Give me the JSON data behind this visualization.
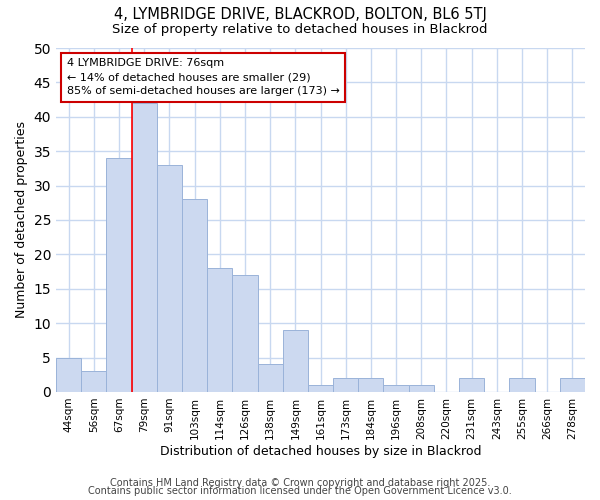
{
  "title1": "4, LYMBRIDGE DRIVE, BLACKROD, BOLTON, BL6 5TJ",
  "title2": "Size of property relative to detached houses in Blackrod",
  "xlabel": "Distribution of detached houses by size in Blackrod",
  "ylabel": "Number of detached properties",
  "categories": [
    "44sqm",
    "56sqm",
    "67sqm",
    "79sqm",
    "91sqm",
    "103sqm",
    "114sqm",
    "126sqm",
    "138sqm",
    "149sqm",
    "161sqm",
    "173sqm",
    "184sqm",
    "196sqm",
    "208sqm",
    "220sqm",
    "231sqm",
    "243sqm",
    "255sqm",
    "266sqm",
    "278sqm"
  ],
  "values": [
    5,
    3,
    34,
    42,
    33,
    28,
    18,
    17,
    4,
    9,
    1,
    2,
    2,
    1,
    1,
    0,
    2,
    0,
    2,
    0,
    2
  ],
  "bar_color": "#ccd9f0",
  "bar_edge_color": "#9ab3d9",
  "red_line_index": 3,
  "annotation_title": "4 LYMBRIDGE DRIVE: 76sqm",
  "annotation_line1": "← 14% of detached houses are smaller (29)",
  "annotation_line2": "85% of semi-detached houses are larger (173) →",
  "annotation_box_facecolor": "#ffffff",
  "annotation_box_edgecolor": "#cc0000",
  "ylim": [
    0,
    50
  ],
  "yticks": [
    0,
    5,
    10,
    15,
    20,
    25,
    30,
    35,
    40,
    45,
    50
  ],
  "plot_bg_color": "#ffffff",
  "fig_bg_color": "#ffffff",
  "grid_color": "#c8d8f0",
  "footer1": "Contains HM Land Registry data © Crown copyright and database right 2025.",
  "footer2": "Contains public sector information licensed under the Open Government Licence v3.0."
}
